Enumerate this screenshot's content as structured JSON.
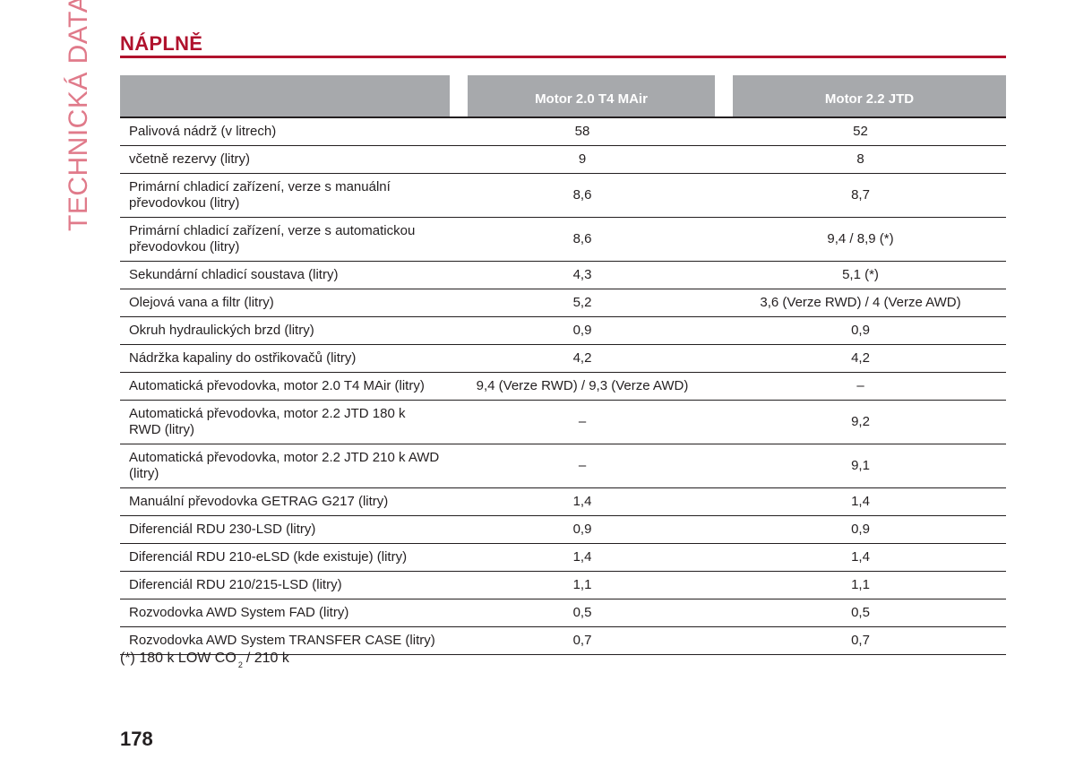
{
  "side_title": "TECHNICKÁ DATA",
  "heading": "NÁPLNĚ",
  "colors": {
    "accent": "#b0122d",
    "side_title": "#e07a8a",
    "header_bg": "#a7a9ac",
    "text": "#231f20"
  },
  "table": {
    "columns": [
      "",
      "Motor 2.0 T4 MAir",
      "Motor 2.2 JTD"
    ],
    "rows": [
      {
        "label": "Palivová nádrž (v litrech)",
        "a": "58",
        "b": "52"
      },
      {
        "label": "včetně rezervy (litry)",
        "a": "9",
        "b": "8"
      },
      {
        "label": "Primární chladicí zařízení, verze s manuální převodovkou (litry)",
        "a": "8,6",
        "b": "8,7"
      },
      {
        "label": "Primární chladicí zařízení, verze s automatickou převodovkou (litry)",
        "a": "8,6",
        "b": "9,4 / 8,9 (*)"
      },
      {
        "label": "Sekundární chladicí soustava (litry)",
        "a": "4,3",
        "b": "5,1 (*)"
      },
      {
        "label": "Olejová vana a filtr (litry)",
        "a": "5,2",
        "b": "3,6 (Verze RWD) / 4 (Verze AWD)"
      },
      {
        "label": "Okruh hydraulických brzd (litry)",
        "a": "0,9",
        "b": "0,9"
      },
      {
        "label": "Nádržka kapaliny do ostřikovačů (litry)",
        "a": "4,2",
        "b": "4,2"
      },
      {
        "label": "Automatická převodovka, motor 2.0 T4 MAir (litry)",
        "a": "9,4 (Verze RWD) / 9,3 (Verze AWD)",
        "b": "–"
      },
      {
        "label": "Automatická převodovka, motor 2.2 JTD 180 k RWD (litry)",
        "a": "–",
        "b": "9,2"
      },
      {
        "label": "Automatická převodovka, motor 2.2 JTD 210 k AWD (litry)",
        "a": "–",
        "b": "9,1"
      },
      {
        "label": "Manuální převodovka GETRAG G217 (litry)",
        "a": "1,4",
        "b": "1,4"
      },
      {
        "label": "Diferenciál RDU 230-LSD (litry)",
        "a": "0,9",
        "b": "0,9"
      },
      {
        "label": "Diferenciál RDU 210-eLSD (kde existuje) (litry)",
        "a": "1,4",
        "b": "1,4"
      },
      {
        "label": "Diferenciál RDU 210/215-LSD (litry)",
        "a": "1,1",
        "b": "1,1"
      },
      {
        "label": "Rozvodovka AWD System FAD (litry)",
        "a": "0,5",
        "b": "0,5"
      },
      {
        "label": "Rozvodovka AWD System TRANSFER CASE (litry)",
        "a": "0,7",
        "b": "0,7"
      }
    ]
  },
  "footnote": {
    "prefix": "(*) 180 k LOW CO",
    "subscript": "2",
    "suffix": "/ 210 k"
  },
  "page_number": "178"
}
